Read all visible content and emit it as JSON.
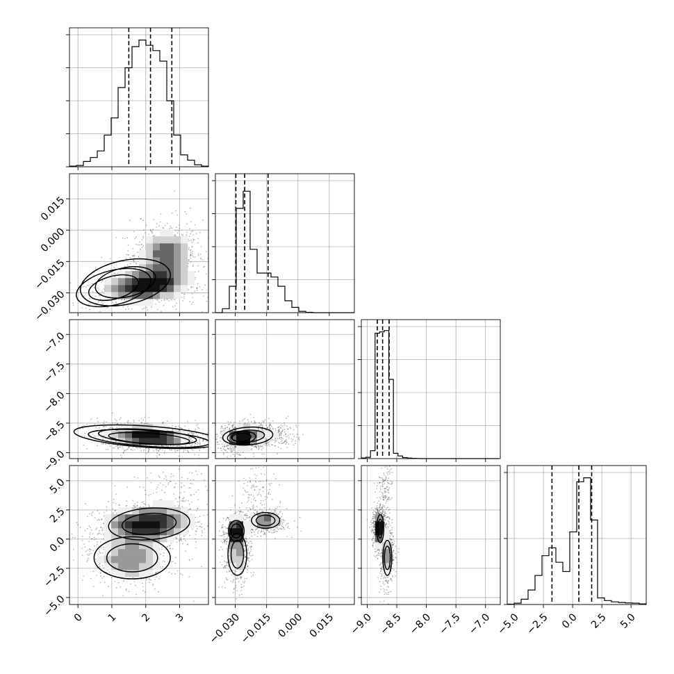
{
  "chart_data": {
    "type": "corner",
    "parameters": [
      {
        "ticks": [
          0,
          1,
          2,
          3
        ],
        "tick_labels": [
          "0",
          "1",
          "2",
          "3"
        ],
        "range": [
          -0.25,
          3.85
        ],
        "quantiles": [
          1.5,
          2.14,
          2.77
        ],
        "hist_edges": [
          -0.25,
          -0.045,
          0.16,
          0.365,
          0.57,
          0.775,
          0.98,
          1.185,
          1.39,
          1.595,
          1.8,
          2.005,
          2.21,
          2.415,
          2.62,
          2.825,
          3.03,
          3.235,
          3.44,
          3.645,
          3.85
        ],
        "hist_counts": [
          0.005,
          0.01,
          0.04,
          0.07,
          0.12,
          0.24,
          0.37,
          0.6,
          0.75,
          0.91,
          0.96,
          0.92,
          0.88,
          0.8,
          0.5,
          0.24,
          0.09,
          0.05,
          0.015,
          0.005
        ],
        "y_ticks": [
          0,
          0.25,
          0.5,
          0.75,
          1.0
        ]
      },
      {
        "ticks": [
          -0.03,
          -0.015,
          0.0,
          0.015
        ],
        "tick_labels": [
          "−0.030",
          "−0.015",
          "0.000",
          "0.015"
        ],
        "range": [
          -0.0395,
          0.027
        ],
        "quantiles": [
          -0.0297,
          -0.0255,
          -0.0143
        ],
        "hist_edges": [
          -0.0395,
          -0.03618,
          -0.03285,
          -0.02952,
          -0.0262,
          -0.02288,
          -0.01955,
          -0.01622,
          -0.0129,
          -0.00958,
          -0.00625,
          -0.00293,
          0.0004,
          0.00373,
          0.00705,
          0.01038,
          0.0137,
          0.01703,
          0.02035,
          0.02368,
          0.027
        ],
        "hist_counts": [
          0.0,
          0.03,
          0.2,
          0.79,
          0.92,
          0.48,
          0.3,
          0.3,
          0.27,
          0.2,
          0.09,
          0.04,
          0.01,
          0.003,
          0.0,
          0.0,
          0.0,
          0.0,
          0.0,
          0.0
        ],
        "y_ticks": [
          0,
          0.25,
          0.5,
          0.75,
          1.0
        ]
      },
      {
        "ticks": [
          -9.0,
          -8.5,
          -8.0,
          -7.5,
          -7.0
        ],
        "tick_labels": [
          "−9.0",
          "−8.5",
          "−8.0",
          "−7.5",
          "−7.0"
        ],
        "range": [
          -9.1,
          -6.75
        ],
        "quantiles": [
          -8.83,
          -8.74,
          -8.63
        ],
        "hist_edges": [
          -9.1,
          -9.0225,
          -8.945,
          -8.8675,
          -8.79,
          -8.7125,
          -8.635,
          -8.5575,
          -8.48,
          -8.4025,
          -8.325,
          -8.2475,
          -8.17,
          -8.0925,
          -8.015,
          -7.9375,
          -7.86,
          -7.7825,
          -7.705,
          -7.6275,
          -7.55,
          -7.4725,
          -7.395,
          -7.3175,
          -7.24,
          -7.1625,
          -7.085,
          -7.0075,
          -6.93,
          -6.8525,
          -6.775
        ],
        "hist_counts": [
          0.005,
          0.01,
          0.06,
          0.95,
          0.96,
          0.97,
          0.6,
          0.04,
          0.02,
          0.008,
          0.004,
          0.002,
          0.001,
          0,
          0,
          0,
          0,
          0,
          0,
          0,
          0,
          0,
          0,
          0,
          0,
          0,
          0,
          0,
          0,
          0
        ],
        "y_ticks": [
          0,
          0.25,
          0.5,
          0.75,
          1.0
        ]
      },
      {
        "ticks": [
          -5.0,
          -2.5,
          0.0,
          2.5,
          5.0
        ],
        "tick_labels": [
          "−5.0",
          "−2.5",
          "0.0",
          "2.5",
          "5.0"
        ],
        "range": [
          -5.6,
          6.3
        ],
        "quantiles": [
          -1.77,
          0.53,
          1.63
        ],
        "hist_edges": [
          -5.6,
          -5.005,
          -4.41,
          -3.815,
          -3.22,
          -2.625,
          -2.03,
          -1.435,
          -0.84,
          -0.245,
          0.35,
          0.945,
          1.54,
          2.135,
          2.73,
          3.325,
          3.92,
          4.515,
          5.11,
          5.705,
          6.3
        ],
        "hist_counts": [
          0.003,
          0.01,
          0.04,
          0.11,
          0.22,
          0.37,
          0.43,
          0.32,
          0.25,
          0.55,
          0.93,
          0.96,
          0.64,
          0.05,
          0.03,
          0.02,
          0.015,
          0.012,
          0.01,
          0.005
        ],
        "y_ticks": [
          0,
          0.5,
          1.0
        ]
      }
    ],
    "pairs": [
      {
        "row": 1,
        "col": 0,
        "rho": 0.25,
        "levels": [
          [
            1.05,
            0.75,
            -0.0275,
            0.0055,
            0.35
          ],
          [
            1.4,
            0.9,
            -0.025,
            0.007,
            0.3
          ]
        ],
        "components": [
          {
            "w": 0.6,
            "mx": 2.0,
            "my": -0.0265,
            "sx": 0.7,
            "sy": 0.0045,
            "rho": 0.2
          },
          {
            "w": 0.4,
            "mx": 2.6,
            "my": -0.012,
            "sx": 0.45,
            "sy": 0.007,
            "rho": 0.0
          }
        ]
      },
      {
        "row": 2,
        "col": 0,
        "rho": -0.15,
        "levels": [
          [
            2.1,
            1.2,
            -8.76,
            0.09,
            -0.1
          ],
          [
            2.05,
            1.45,
            -8.73,
            0.12,
            -0.1
          ]
        ],
        "components": [
          {
            "w": 1.0,
            "mx": 2.1,
            "my": -8.73,
            "sx": 0.65,
            "sy": 0.1,
            "rho": -0.2
          }
        ]
      },
      {
        "row": 2,
        "col": 1,
        "rho": 0.1,
        "levels": [
          [
            -0.027,
            0.0045,
            -8.74,
            0.07,
            0.1
          ],
          [
            -0.024,
            0.008,
            -8.72,
            0.1,
            0.1
          ]
        ],
        "components": [
          {
            "w": 0.8,
            "mx": -0.0265,
            "my": -8.74,
            "sx": 0.0045,
            "sy": 0.1,
            "rho": 0.1
          },
          {
            "w": 0.2,
            "mx": -0.014,
            "my": -8.7,
            "sx": 0.006,
            "sy": 0.1,
            "rho": 0.0
          }
        ]
      },
      {
        "row": 3,
        "col": 0,
        "rho": 0.2,
        "levels": [
          [
            2.1,
            0.8,
            1.3,
            0.9,
            0.1
          ],
          [
            1.6,
            0.75,
            -1.6,
            1.2,
            0.0
          ]
        ],
        "components": [
          {
            "w": 0.65,
            "mx": 2.1,
            "my": 1.3,
            "sx": 0.75,
            "sy": 0.9,
            "rho": 0.15
          },
          {
            "w": 0.35,
            "mx": 1.55,
            "my": -1.7,
            "sx": 0.6,
            "sy": 1.1,
            "rho": 0.0
          },
          {
            "w": 0.08,
            "mx": 2.9,
            "my": 4.5,
            "sx": 0.5,
            "sy": 1.0,
            "rho": 0.0
          }
        ]
      },
      {
        "row": 3,
        "col": 1,
        "rho": 0.3,
        "levels": [
          [
            -0.0295,
            0.0025,
            0.7,
            0.6,
            0.0
          ],
          [
            -0.0155,
            0.0045,
            1.6,
            0.45,
            0.0
          ],
          [
            -0.029,
            0.003,
            -1.3,
            1.2,
            0.0
          ]
        ],
        "components": [
          {
            "w": 0.4,
            "mx": -0.0295,
            "my": 0.7,
            "sx": 0.0025,
            "sy": 0.7,
            "rho": 0.0
          },
          {
            "w": 0.3,
            "mx": -0.0155,
            "my": 1.6,
            "sx": 0.0045,
            "sy": 0.5,
            "rho": 0.0
          },
          {
            "w": 0.3,
            "mx": -0.029,
            "my": -1.4,
            "sx": 0.003,
            "sy": 1.2,
            "rho": 0.0
          },
          {
            "w": 0.08,
            "mx": -0.02,
            "my": 4.3,
            "sx": 0.004,
            "sy": 1.0,
            "rho": 0.0
          }
        ]
      },
      {
        "row": 3,
        "col": 2,
        "rho": 0.0,
        "levels": [
          [
            -8.78,
            0.04,
            0.9,
            0.8,
            0.0
          ],
          [
            -8.66,
            0.05,
            -1.6,
            1.0,
            0.0
          ]
        ],
        "components": [
          {
            "w": 0.55,
            "mx": -8.79,
            "my": 0.9,
            "sx": 0.05,
            "sy": 0.8,
            "rho": 0.0
          },
          {
            "w": 0.35,
            "mx": -8.66,
            "my": -1.6,
            "sx": 0.05,
            "sy": 1.1,
            "rho": 0.0
          },
          {
            "w": 0.08,
            "mx": -8.7,
            "my": 4.3,
            "sx": 0.06,
            "sy": 1.0,
            "rho": 0.0
          }
        ]
      }
    ],
    "grid": true,
    "colors": {
      "ink": "#000000",
      "grid": "#b0b0b0",
      "background": "#ffffff"
    }
  }
}
